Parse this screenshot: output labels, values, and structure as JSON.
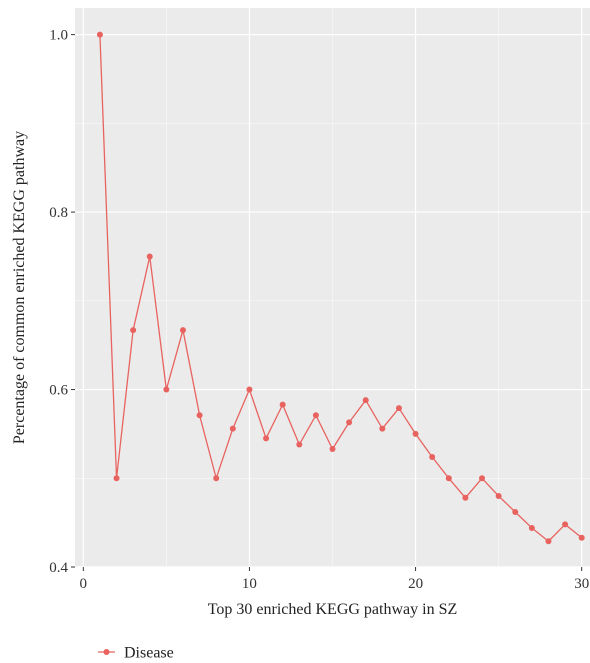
{
  "chart_data": {
    "type": "line",
    "title": "",
    "xlabel": "Top 30 enriched KEGG pathway in SZ",
    "ylabel": "Percentage of common enriched KEGG pathway",
    "xlim": [
      -0.5,
      30.5
    ],
    "ylim": [
      0.4,
      1.03
    ],
    "x_ticks": [
      0,
      10,
      20,
      30
    ],
    "x_tick_labels": [
      "0",
      "10",
      "20",
      "30"
    ],
    "y_ticks": [
      0.4,
      0.6,
      0.8,
      1.0
    ],
    "y_tick_labels": [
      "0.4",
      "0.6",
      "0.8",
      "1.0"
    ],
    "grid": true,
    "legend_position": "bottom-left",
    "x": [
      1,
      2,
      3,
      4,
      5,
      6,
      7,
      8,
      9,
      10,
      11,
      12,
      13,
      14,
      15,
      16,
      17,
      18,
      19,
      20,
      21,
      22,
      23,
      24,
      25,
      26,
      27,
      28,
      29,
      30
    ],
    "series": [
      {
        "name": "Disease",
        "color": "#e8635f",
        "values": [
          1.0,
          0.5,
          0.667,
          0.75,
          0.6,
          0.667,
          0.571,
          0.5,
          0.556,
          0.6,
          0.545,
          0.583,
          0.538,
          0.571,
          0.533,
          0.563,
          0.588,
          0.556,
          0.579,
          0.55,
          0.524,
          0.5,
          0.478,
          0.5,
          0.48,
          0.462,
          0.444,
          0.429,
          0.448,
          0.433
        ]
      }
    ]
  },
  "colors": {
    "panel_background": "#ebebeb",
    "grid_major": "#ffffff",
    "series_line": "#e8635f"
  }
}
